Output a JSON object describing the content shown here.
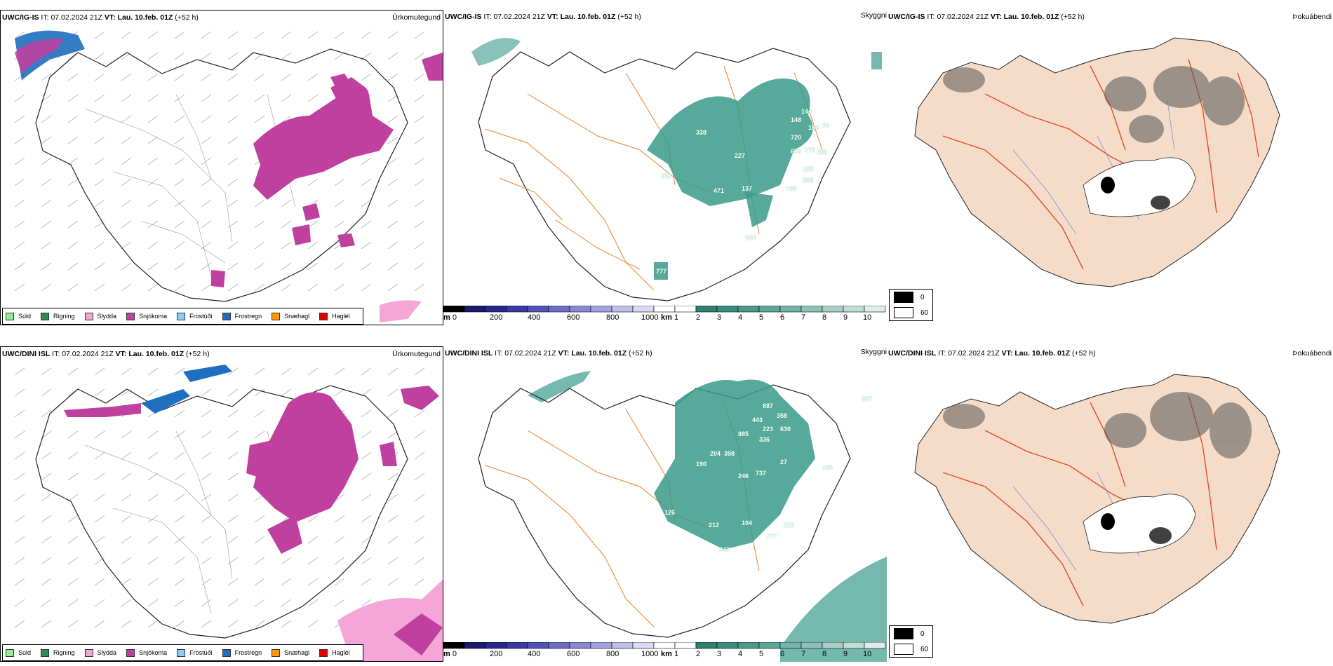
{
  "rows": [
    {
      "model": "UWC/IG-IS",
      "panels": {
        "precip": {
          "header_model": "UWC/IG-IS",
          "it_label": "IT:",
          "it_value": "07.02.2024 21Z",
          "vt_label": "VT:",
          "vt_value": "Lau. 10.feb. 01Z",
          "lead": "(+52 h)",
          "title": "Úrkomutegund"
        },
        "cloud": {
          "header_model": "UWC/IG-IS",
          "it_label": "IT:",
          "it_value": "07.02.2024 21Z",
          "vt_label": "VT:",
          "vt_value": "Lau. 10.feb. 01Z",
          "lead": "(+52 h)",
          "title": "Skyggni"
        },
        "fog": {
          "header_model": "UWC/IG-IS",
          "it_label": "IT:",
          "it_value": "07.02.2024 21Z",
          "vt_label": "VT:",
          "vt_value": "Lau. 10.feb. 01Z",
          "lead": "(+52 h)",
          "title": "Þokuábendi"
        }
      },
      "numbers": [
        "338",
        "227",
        "132",
        "471",
        "137",
        "144",
        "148",
        "168",
        "720",
        "656",
        "770",
        "200",
        "190",
        "208",
        "138",
        "20",
        "100",
        "777"
      ]
    },
    {
      "model": "UWC/DINI ISL",
      "panels": {
        "precip": {
          "header_model": "UWC/DINI ISL",
          "it_label": "IT:",
          "it_value": "07.02.2024 21Z",
          "vt_label": "VT:",
          "vt_value": "Lau. 10.feb. 01Z",
          "lead": "(+52 h)",
          "title": "Úrkomutegund"
        },
        "cloud": {
          "header_model": "UWC/DINI ISL",
          "it_label": "IT:",
          "it_value": "07.02.2024 21Z",
          "vt_label": "VT:",
          "vt_value": "Lau. 10.feb. 01Z",
          "lead": "(+52 h)",
          "title": "Skyggni"
        },
        "fog": {
          "header_model": "UWC/DINI ISL",
          "it_label": "IT:",
          "it_value": "07.02.2024 21Z",
          "vt_label": "VT:",
          "vt_value": "Lau. 10.feb. 01Z",
          "lead": "(+52 h)",
          "title": "Þokuábendi"
        }
      },
      "numbers": [
        "887",
        "358",
        "443",
        "223",
        "630",
        "885",
        "336",
        "204",
        "398",
        "190",
        "246",
        "737",
        "27",
        "126",
        "212",
        "104",
        "222",
        "777",
        "343",
        "927",
        "105"
      ]
    }
  ],
  "precip_legend": [
    {
      "label": "Súld",
      "color": "#90ee90"
    },
    {
      "label": "Rigning",
      "color": "#2e8b57"
    },
    {
      "label": "Slydda",
      "color": "#f4a6d7"
    },
    {
      "label": "Snjókoma",
      "color": "#c040a0"
    },
    {
      "label": "Frostúði",
      "color": "#87cefa"
    },
    {
      "label": "Frostregn",
      "color": "#1e6fbf"
    },
    {
      "label": "Snæhagl",
      "color": "#ff9900"
    },
    {
      "label": "Haglél",
      "color": "#dd0000"
    }
  ],
  "scale_m": {
    "unit": "m",
    "ticks": [
      "0",
      "200",
      "400",
      "600",
      "800",
      "1000"
    ]
  },
  "scale_km": {
    "unit": "km",
    "ticks": [
      "1",
      "2",
      "3",
      "4",
      "5",
      "6",
      "7",
      "8",
      "9",
      "10"
    ]
  },
  "fog_legend": [
    {
      "label": "0",
      "color": "#000000"
    },
    {
      "label": "60",
      "color": "#ffffff"
    }
  ],
  "colors": {
    "snow": "#c040a0",
    "sleet": "#f4a6d7",
    "freezing_rain": "#1e6fbf",
    "visibility_teal": "#3a9a8a",
    "roads_orange": "#e8822a",
    "land_peach": "#f5dcc8",
    "rivers_blue": "#7b8fe0"
  }
}
